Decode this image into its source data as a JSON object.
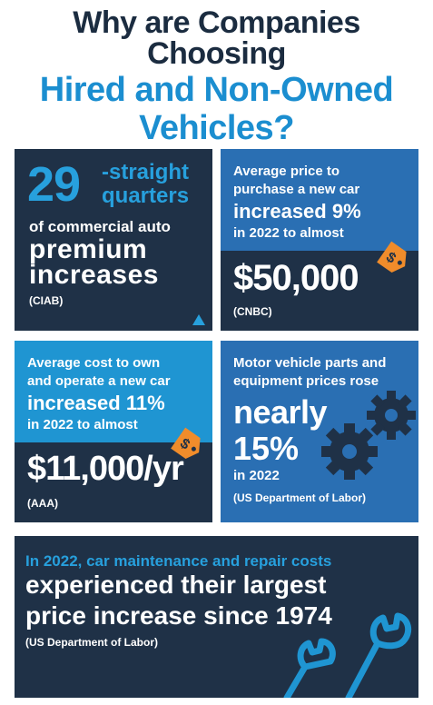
{
  "title": {
    "line1": "Why are Companies Choosing",
    "line2": "Hired and Non-Owned",
    "line3": "Vehicles?"
  },
  "card1": {
    "number": "29",
    "quarters_line1": "-straight",
    "quarters_line2": "quarters",
    "sub": "of commercial auto",
    "big1": "premium",
    "big2": "increases",
    "source": "(CIAB)"
  },
  "card2": {
    "line1": "Average price to",
    "line2": "purchase a new car",
    "line3": "increased 9%",
    "line4": "in 2022 to almost",
    "price": "$50,000",
    "source": "(CNBC)"
  },
  "card3": {
    "line1": "Average cost to own",
    "line2": "and operate a new car",
    "line3": "increased 11%",
    "line4": "in 2022 to almost",
    "price": "$11,000/yr",
    "source": "(AAA)"
  },
  "card4": {
    "line1": "Motor vehicle parts and",
    "line2": "equipment prices rose",
    "line3": "nearly",
    "line4": "15%",
    "line5": "in 2022",
    "source": "(US Department of Labor)"
  },
  "card5": {
    "line1": "In 2022, car maintenance and repair costs",
    "line2": "experienced their largest",
    "line3": "price increase since 1974",
    "source": "(US Department of Labor)"
  },
  "icons": {
    "price_tag": "price-tag-icon",
    "gears": "gears-icon",
    "wrenches": "wrenches-icon",
    "triangle": "triangle-icon"
  },
  "colors": {
    "navy": "#1f3147",
    "blue": "#2a6fb3",
    "light_blue": "#1f95d2",
    "accent": "#27a0dd",
    "tag_orange": "#f08c2b"
  }
}
